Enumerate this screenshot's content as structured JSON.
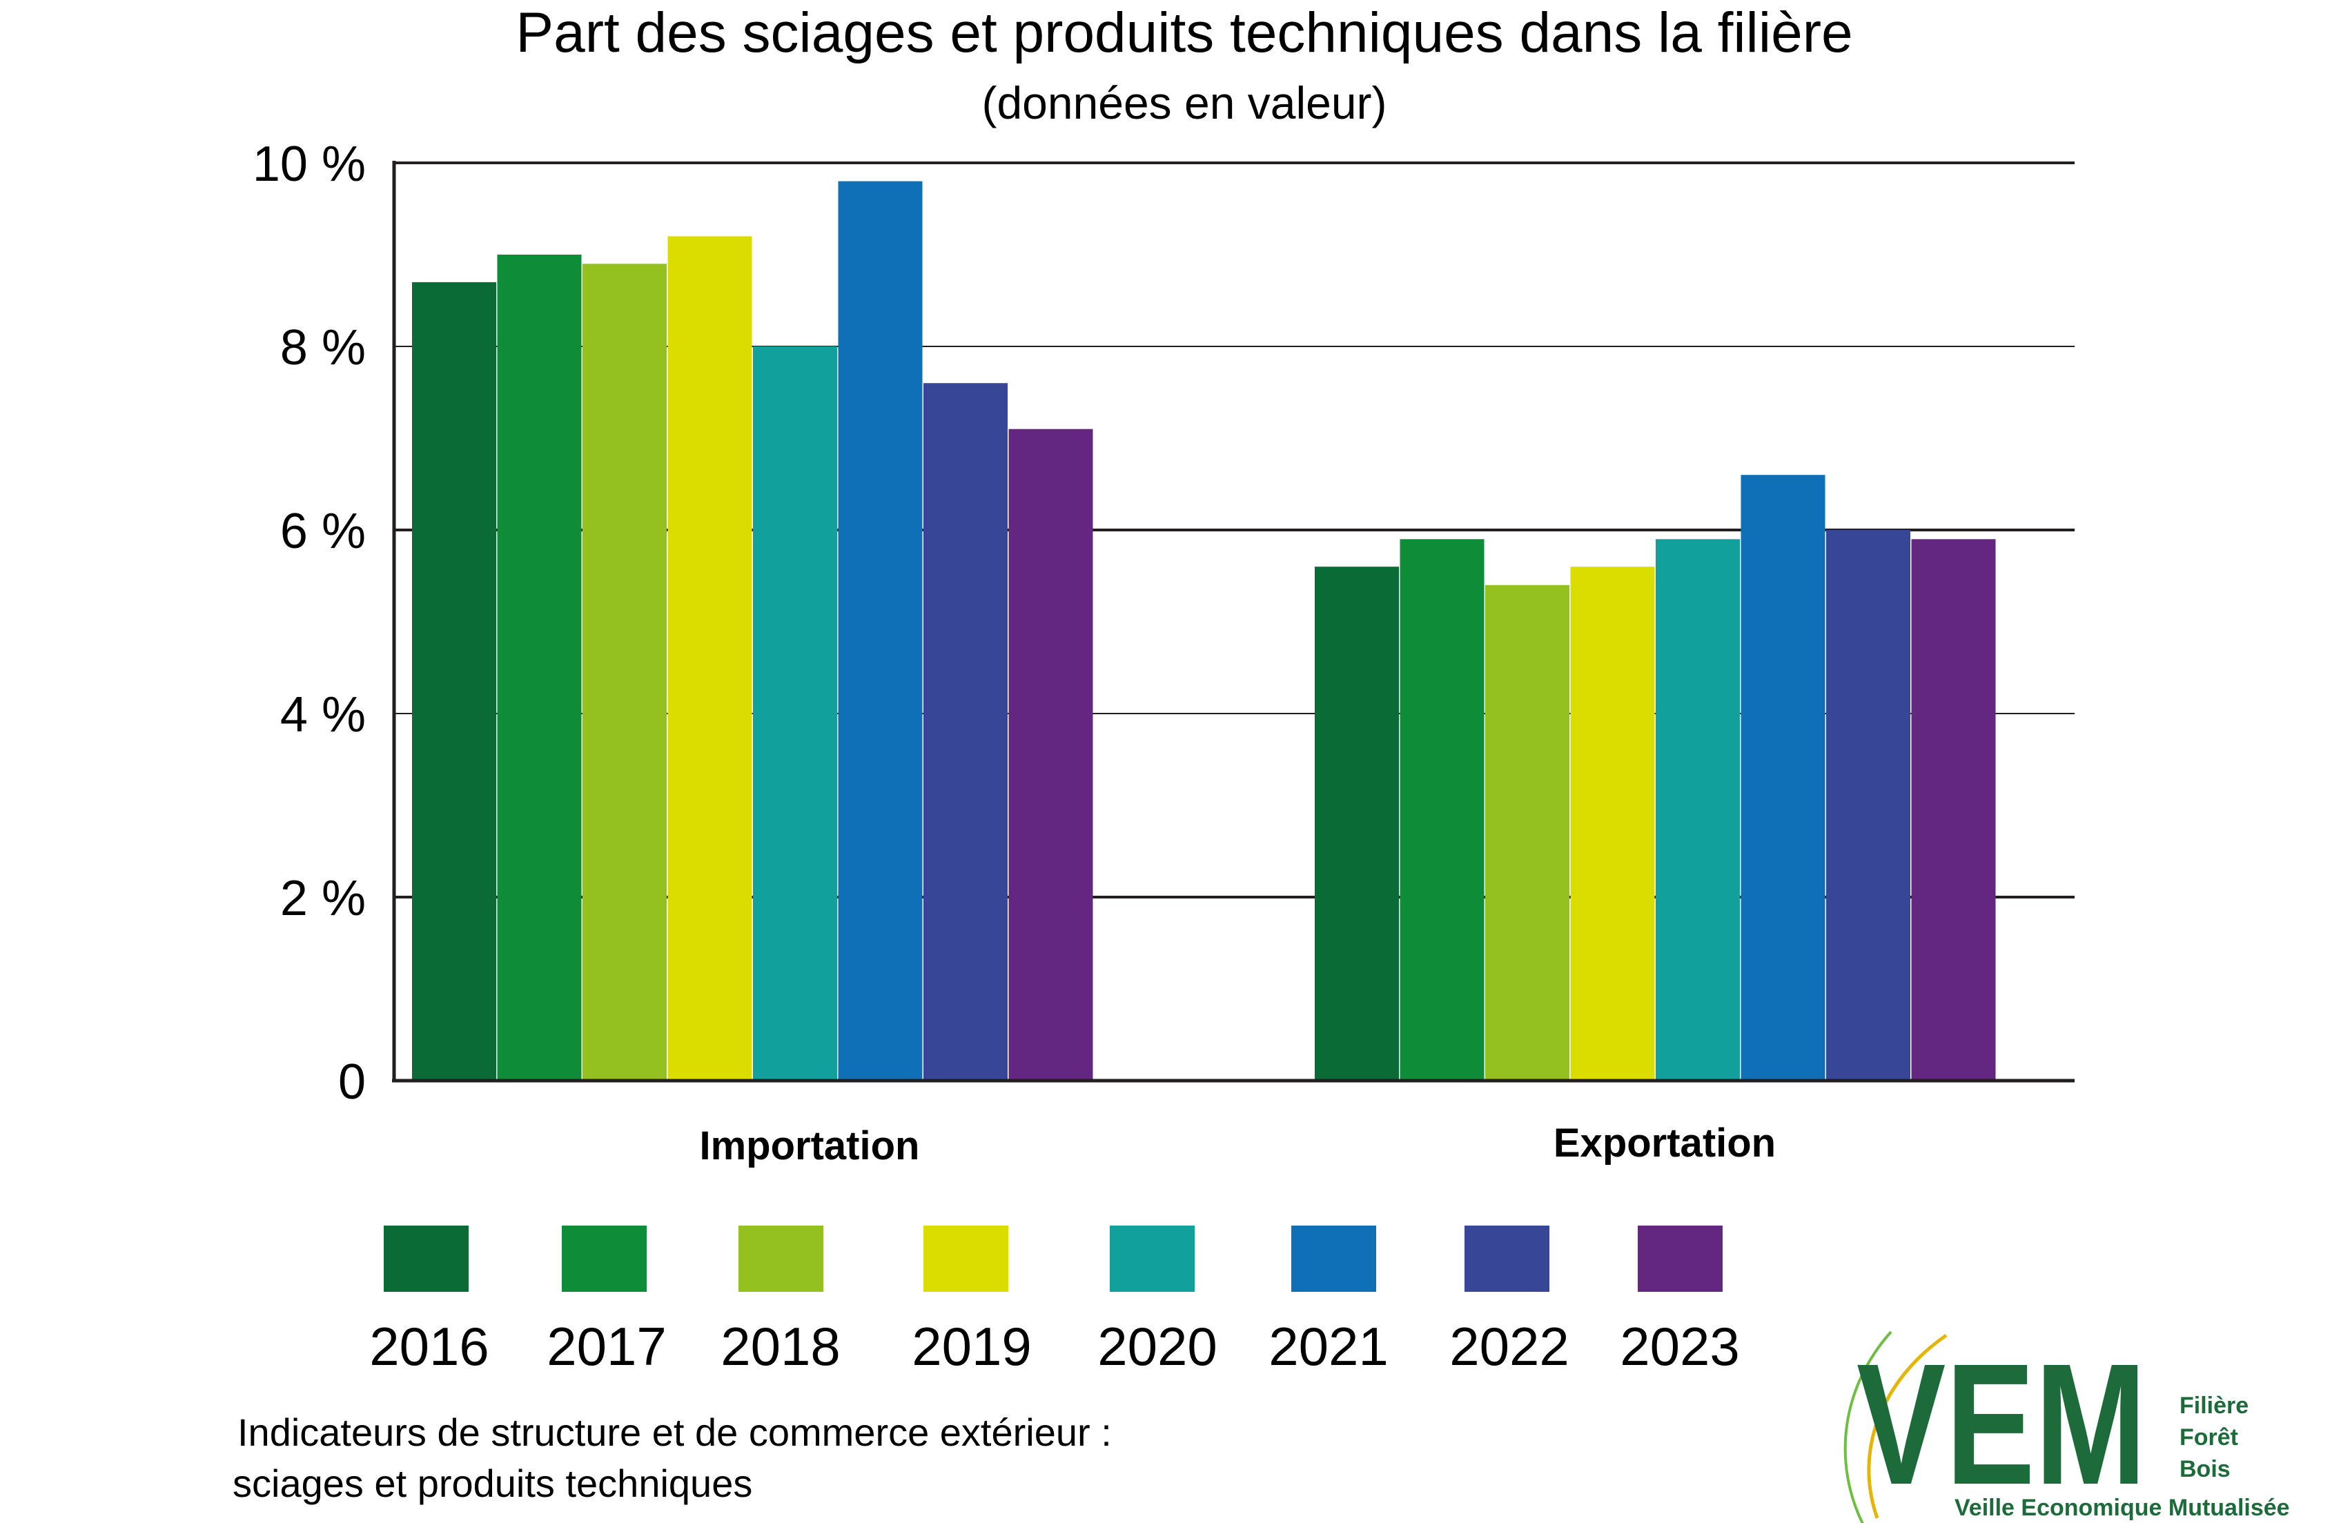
{
  "chart_data": {
    "type": "bar",
    "title": "Part des sciages et produits techniques dans la filière",
    "subtitle": "(données en valeur)",
    "categories": [
      "Importation",
      "Exportation"
    ],
    "y_ticks": [
      "0",
      "2 %",
      "4 %",
      "6 %",
      "8 %",
      "10 %"
    ],
    "ylim": [
      0,
      10
    ],
    "grid": true,
    "legend_placement": "bottom",
    "series": [
      {
        "name": "2016",
        "color": "#0a6b36",
        "values": [
          8.7,
          5.6
        ]
      },
      {
        "name": "2017",
        "color": "#0e8c38",
        "values": [
          9.0,
          5.9
        ]
      },
      {
        "name": "2018",
        "color": "#95c120",
        "values": [
          8.9,
          5.4
        ]
      },
      {
        "name": "2019",
        "color": "#dbdc00",
        "values": [
          9.2,
          5.6
        ]
      },
      {
        "name": "2020",
        "color": "#11a09c",
        "values": [
          8.0,
          5.9
        ]
      },
      {
        "name": "2021",
        "color": "#0f70b7",
        "values": [
          9.8,
          6.6
        ]
      },
      {
        "name": "2022",
        "color": "#384697",
        "values": [
          7.6,
          6.0
        ]
      },
      {
        "name": "2023",
        "color": "#632781",
        "values": [
          7.1,
          5.9
        ]
      }
    ]
  },
  "footnote": {
    "line1": "Indicateurs de structure et de commerce extérieur :",
    "line2": "sciages et produits techniques"
  },
  "logo": {
    "letters": "VEM",
    "line1": "Filière",
    "line2": "Forêt",
    "line3": "Bois",
    "tagline": "Veille Economique Mutualisée",
    "color": "#1d6b3a",
    "accent": "#e3b505"
  }
}
